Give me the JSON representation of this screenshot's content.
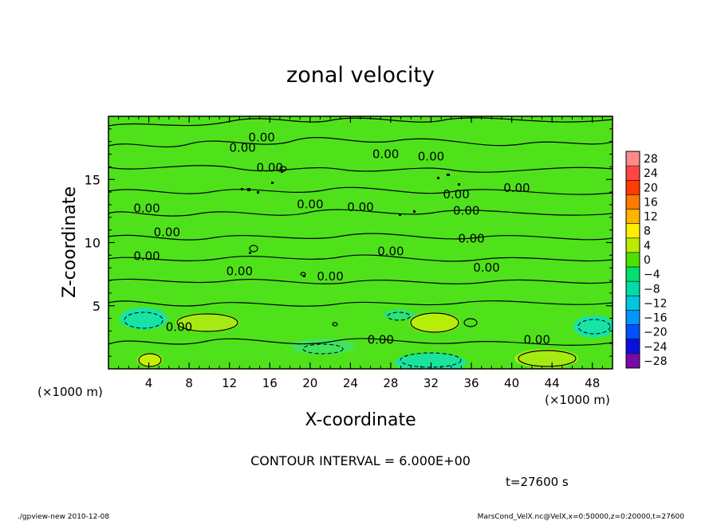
{
  "chart_data": {
    "type": "heatmap",
    "title": "zonal velocity",
    "xlabel": "X-coordinate",
    "ylabel": "Z-coordinate",
    "x_unit_left": "(×1000 m)",
    "x_unit_right": "(×1000 m)",
    "xlim": [
      0,
      50
    ],
    "ylim": [
      0,
      20
    ],
    "x_ticks": [
      4,
      8,
      12,
      16,
      20,
      24,
      28,
      32,
      36,
      40,
      44,
      48
    ],
    "x_tick_labels": [
      "4",
      "8",
      "12",
      "16",
      "20",
      "24",
      "28",
      "32",
      "36",
      "40",
      "44",
      "48"
    ],
    "y_ticks": [
      5,
      10,
      15
    ],
    "y_tick_labels": [
      "5",
      "10",
      "15"
    ],
    "colorbar_levels": [
      28,
      24,
      20,
      16,
      12,
      8,
      4,
      0,
      -4,
      -8,
      -12,
      -16,
      -20,
      -24,
      -28
    ],
    "colorbar_labels": [
      "28",
      "24",
      "20",
      "16",
      "12",
      "8",
      "4",
      "0",
      "−4",
      "−8",
      "−12",
      "−16",
      "−20",
      "−24",
      "−28"
    ],
    "colorbar_colors": [
      "#ff8a8a",
      "#ff4545",
      "#ff3b00",
      "#ff7a00",
      "#ffb400",
      "#ffee00",
      "#b8ec00",
      "#52e000",
      "#00e070",
      "#00dca6",
      "#00c8e0",
      "#0096ff",
      "#0050ff",
      "#0a10dc",
      "#7a0aa8"
    ],
    "contour_labels": [
      "0.00",
      "0.00",
      "0.00",
      "0.00",
      "0.00",
      "0.00",
      "0.00",
      "0.00",
      "0.00",
      "0.00",
      "0.00",
      "0.00",
      "0.00",
      "0.00",
      "0.00",
      "0.00",
      "0.00",
      "0.00",
      "0.00",
      "0.00",
      "0.00"
    ],
    "contour_interval_text": "CONTOUR INTERVAL = 6.000E+00",
    "time_text": "t=27600 s",
    "footer_left": "./gpview-new 2010-12-08",
    "footer_right": "MarsCond_VelX.nc@VelX,x=0:50000,z=0:20000,t=27600"
  }
}
